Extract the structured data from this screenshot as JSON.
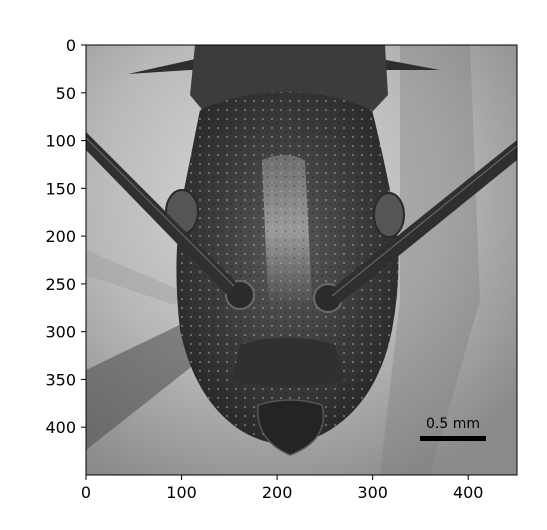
{
  "figure": {
    "xaxis": {
      "ticks": [
        0,
        100,
        200,
        300,
        400
      ],
      "range": [
        0,
        450
      ]
    },
    "yaxis": {
      "ticks": [
        0,
        50,
        100,
        150,
        200,
        250,
        300,
        350,
        400
      ],
      "range": [
        0,
        450
      ],
      "inverted": true
    }
  },
  "image": {
    "subject": "ant head, frontal view, grayscale micrograph",
    "scale_bar": {
      "label": "0.5 mm"
    }
  },
  "colors": {
    "background": "#c4c4c4",
    "specimen": "#3a3a3a",
    "shadow": "#7a7a7a",
    "axis": "#000000"
  }
}
